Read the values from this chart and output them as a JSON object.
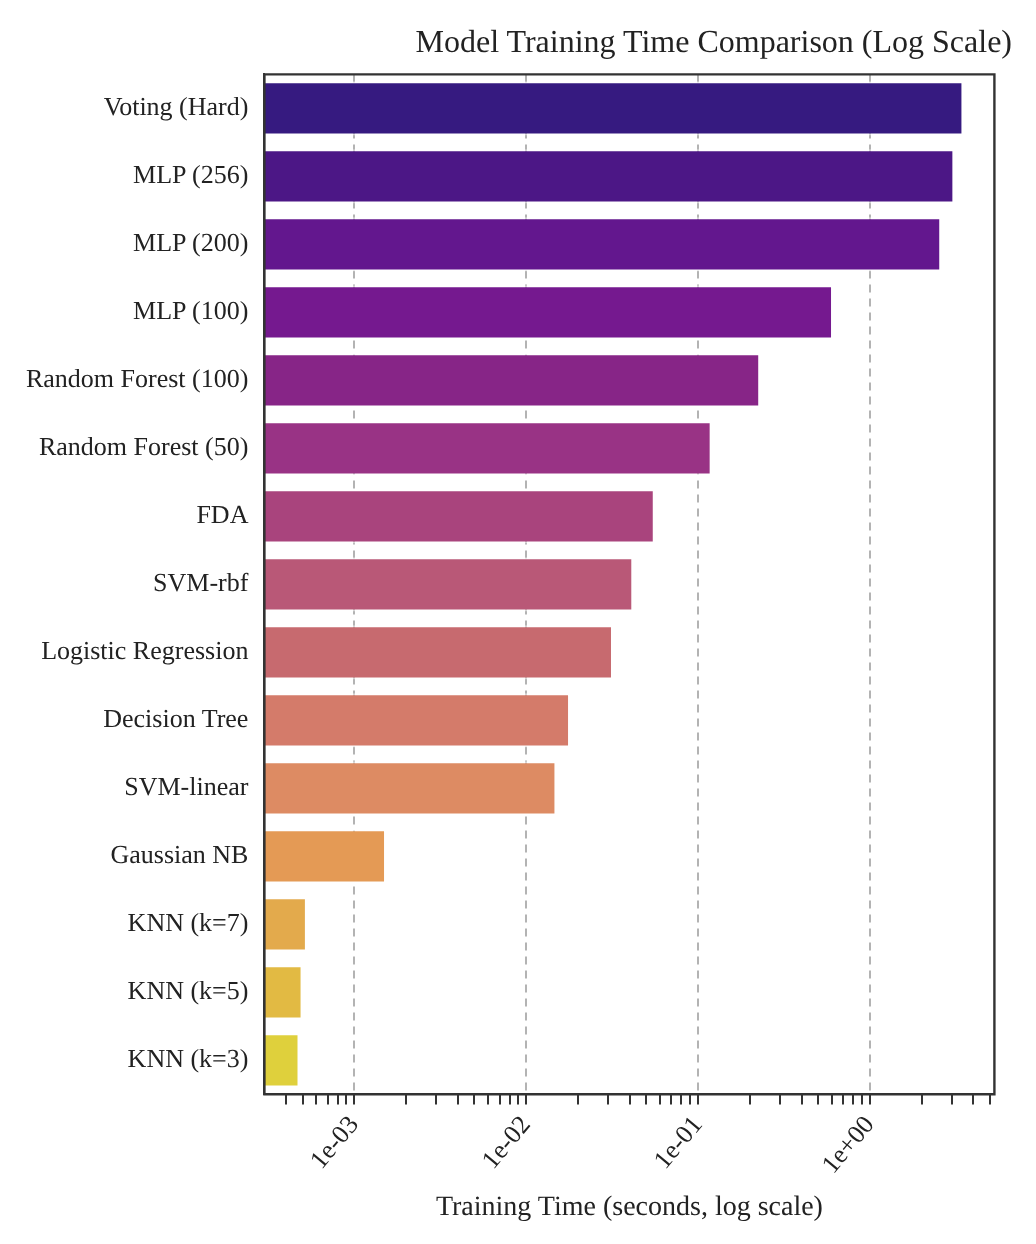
{
  "chart_data": {
    "type": "bar",
    "orientation": "horizontal",
    "log": "x",
    "title": "Model Training Time Comparison (Log Scale)",
    "xlabel": "Training Time (seconds, log scale)",
    "categories": [
      "Voting (Hard)",
      "MLP (256)",
      "MLP (200)",
      "MLP (100)",
      "Random Forest (100)",
      "Random Forest (50)",
      "FDA",
      "SVM-rbf",
      "Logistic Regression",
      "Decision Tree",
      "SVM-linear",
      "Gaussian NB",
      "KNN (k=7)",
      "KNN (k=5)",
      "KNN (k=3)"
    ],
    "values": [
      3.5,
      3.1,
      2.6,
      0.61,
      0.23,
      0.12,
      0.056,
      0.042,
      0.032,
      0.018,
      0.015,
      0.00153,
      0.00053,
      0.0005,
      0.00048
    ],
    "colors": [
      "#361a80",
      "#4c1786",
      "#63178e",
      "#75198f",
      "#872587",
      "#993385",
      "#a9447d",
      "#b95877",
      "#c76a6f",
      "#d47b6a",
      "#dd8b63",
      "#e49a55",
      "#e3aa4c",
      "#e2ba43",
      "#dfd03c"
    ],
    "xlim": [
      0.00032,
      5.3
    ],
    "xticks": [
      {
        "value": 0.0004,
        "label": null
      },
      {
        "value": 0.0005,
        "label": null
      },
      {
        "value": 0.0006,
        "label": null
      },
      {
        "value": 0.0007,
        "label": null
      },
      {
        "value": 0.0008,
        "label": null
      },
      {
        "value": 0.0009,
        "label": null
      },
      {
        "value": 0.001,
        "label": "1e-03"
      },
      {
        "value": 0.002,
        "label": null
      },
      {
        "value": 0.003,
        "label": null
      },
      {
        "value": 0.004,
        "label": null
      },
      {
        "value": 0.005,
        "label": null
      },
      {
        "value": 0.006,
        "label": null
      },
      {
        "value": 0.007,
        "label": null
      },
      {
        "value": 0.008,
        "label": null
      },
      {
        "value": 0.009,
        "label": null
      },
      {
        "value": 0.01,
        "label": "1e-02"
      },
      {
        "value": 0.02,
        "label": null
      },
      {
        "value": 0.03,
        "label": null
      },
      {
        "value": 0.04,
        "label": null
      },
      {
        "value": 0.05,
        "label": null
      },
      {
        "value": 0.06,
        "label": null
      },
      {
        "value": 0.07,
        "label": null
      },
      {
        "value": 0.08,
        "label": null
      },
      {
        "value": 0.09,
        "label": null
      },
      {
        "value": 0.1,
        "label": "1e-01"
      },
      {
        "value": 0.2,
        "label": null
      },
      {
        "value": 0.3,
        "label": null
      },
      {
        "value": 0.4,
        "label": null
      },
      {
        "value": 0.5,
        "label": null
      },
      {
        "value": 0.6,
        "label": null
      },
      {
        "value": 0.7,
        "label": null
      },
      {
        "value": 0.8,
        "label": null
      },
      {
        "value": 0.9,
        "label": null
      },
      {
        "value": 1,
        "label": "1e+00"
      },
      {
        "value": 2,
        "label": null
      },
      {
        "value": 3,
        "label": null
      },
      {
        "value": 4,
        "label": null
      },
      {
        "value": 5,
        "label": null
      }
    ],
    "grid": "x",
    "legend": false
  }
}
